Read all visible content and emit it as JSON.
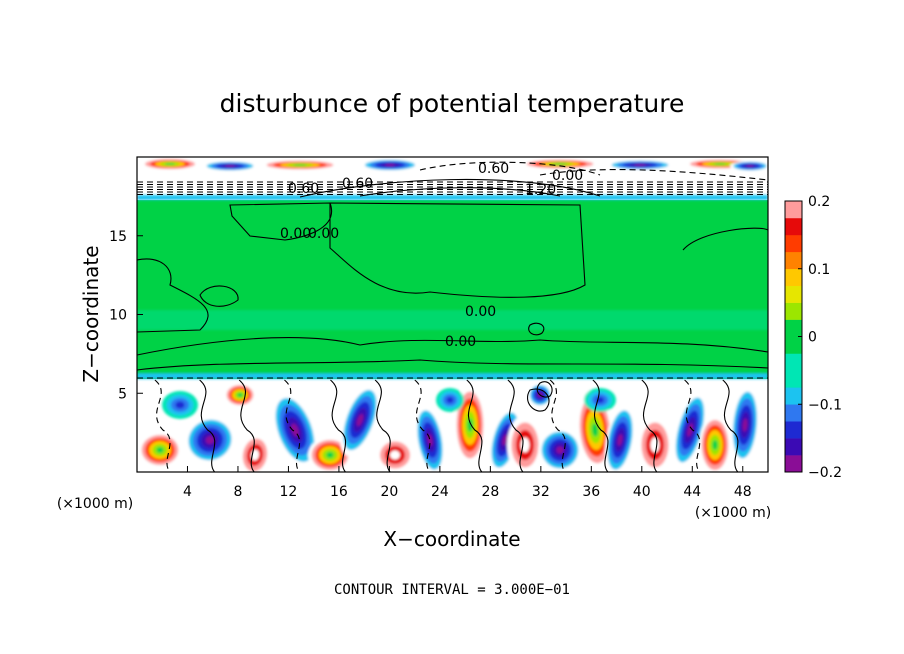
{
  "chart_data": {
    "type": "heatmap",
    "title": "disturbunce of potential temperature",
    "xlabel": "X−coordinate",
    "ylabel": "Z−coordinate",
    "x_unit_label": "(×1000 m)",
    "z_unit_label": "(×1000 m)",
    "footer": "CONTOUR INTERVAL = 3.000E−01",
    "xlim": [
      0,
      50
    ],
    "ylim": [
      0,
      20
    ],
    "x_ticks": [
      "4",
      "8",
      "12",
      "16",
      "20",
      "24",
      "28",
      "32",
      "36",
      "40",
      "44",
      "48"
    ],
    "y_ticks": [
      "5",
      "10",
      "15"
    ],
    "colorbar": {
      "range": [
        -0.2,
        0.2
      ],
      "tick_labels": [
        "0.2",
        "0.1",
        "0",
        "−0.1",
        "−0.2"
      ],
      "colors": [
        "#8a0d96",
        "#3b0ab4",
        "#1e2ad2",
        "#2f78f0",
        "#1cc3f0",
        "#00e6b4",
        "#00e6b4",
        "#00d246",
        "#00d246",
        "#9ce600",
        "#e6e600",
        "#ffc800",
        "#ff8200",
        "#ff3c00",
        "#e60a0a",
        "#ff9c9c"
      ]
    },
    "contour_labels": [
      "0.60",
      "0.60",
      "0.00",
      "0.60",
      "1.20",
      "0.00",
      "0.00",
      "0.00",
      "0.00"
    ],
    "background_band_value": 0.0
  }
}
